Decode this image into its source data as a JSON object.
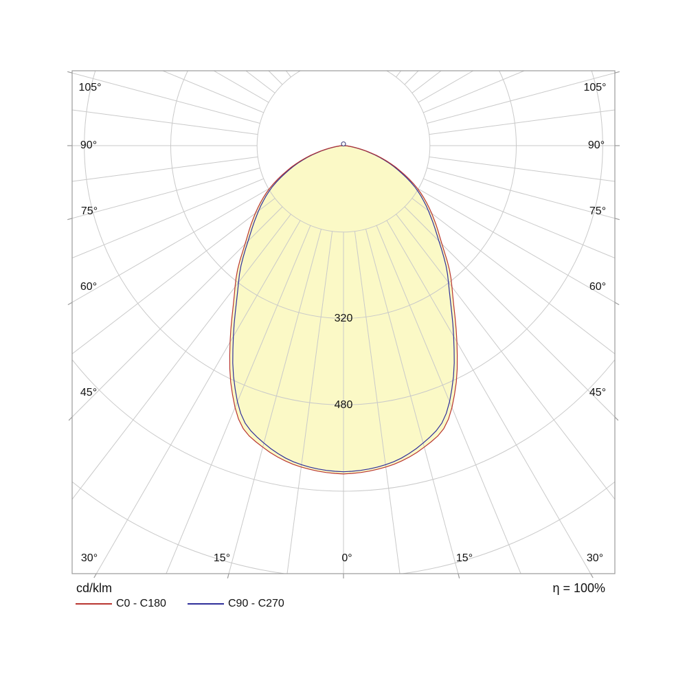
{
  "chart_data": {
    "type": "polar",
    "description": "Polar luminous intensity distribution curve (photometric diagram)",
    "unit_label": "cd/klm",
    "efficiency_label": "η = 100%",
    "ring_values": [
      160,
      320,
      480,
      640,
      800
    ],
    "ring_labels": [
      {
        "value": 320,
        "text": "320"
      },
      {
        "value": 480,
        "text": "480"
      }
    ],
    "ray_step_deg": 7.5,
    "label_step_deg": 15,
    "angle_labels": [
      "105°",
      "90°",
      "75°",
      "60°",
      "45°",
      "30°",
      "15°",
      "0°",
      "15°",
      "30°",
      "45°",
      "60°",
      "75°",
      "90°",
      "105°"
    ],
    "angles_deg": [
      0,
      5,
      10,
      15,
      20,
      25,
      30,
      35,
      40,
      45,
      50,
      55,
      60,
      65,
      70,
      75,
      80,
      85,
      90
    ],
    "series": [
      {
        "name": "C0 - C180",
        "color": "#b8342f",
        "values": [
          608,
          604,
          595,
          578,
          552,
          492,
          420,
          355,
          307,
          258,
          222,
          190,
          158,
          122,
          88,
          54,
          26,
          9,
          2
        ]
      },
      {
        "name": "C90 - C270",
        "color": "#2e2e99",
        "values": [
          604,
          600,
          590,
          570,
          541,
          480,
          408,
          344,
          297,
          250,
          214,
          183,
          152,
          117,
          84,
          51,
          24,
          8,
          2
        ]
      }
    ],
    "fill_color": "#fbf9c6",
    "grid_color": "#c9c9c9",
    "border_color": "#9a9a9a"
  },
  "legend": {
    "items": [
      {
        "label": "C0 - C180",
        "color": "#b8342f"
      },
      {
        "label": "C90 - C270",
        "color": "#2e2e99"
      }
    ]
  }
}
